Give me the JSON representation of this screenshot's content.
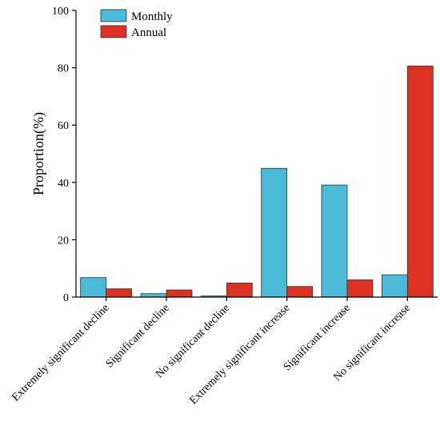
{
  "chart_data": {
    "type": "bar",
    "categories": [
      "Extremely significant decline",
      "Significant decline",
      "No significant decline",
      "Extremely significant increase",
      "Significant increase",
      "No significant increase"
    ],
    "series": [
      {
        "name": "Monthly",
        "color": "#4ABAD6",
        "values": [
          6.8,
          1.2,
          0.4,
          44.9,
          39.1,
          7.8
        ]
      },
      {
        "name": "Annual",
        "color": "#DD3124",
        "values": [
          2.9,
          2.5,
          4.9,
          3.7,
          6.0,
          80.6
        ]
      }
    ],
    "title": "",
    "xlabel": "",
    "ylabel": "Proportion(%)",
    "ylim": [
      0,
      100
    ],
    "yticks": [
      0,
      20,
      40,
      60,
      80,
      100
    ],
    "grid": false,
    "legend_position": "top-left"
  }
}
